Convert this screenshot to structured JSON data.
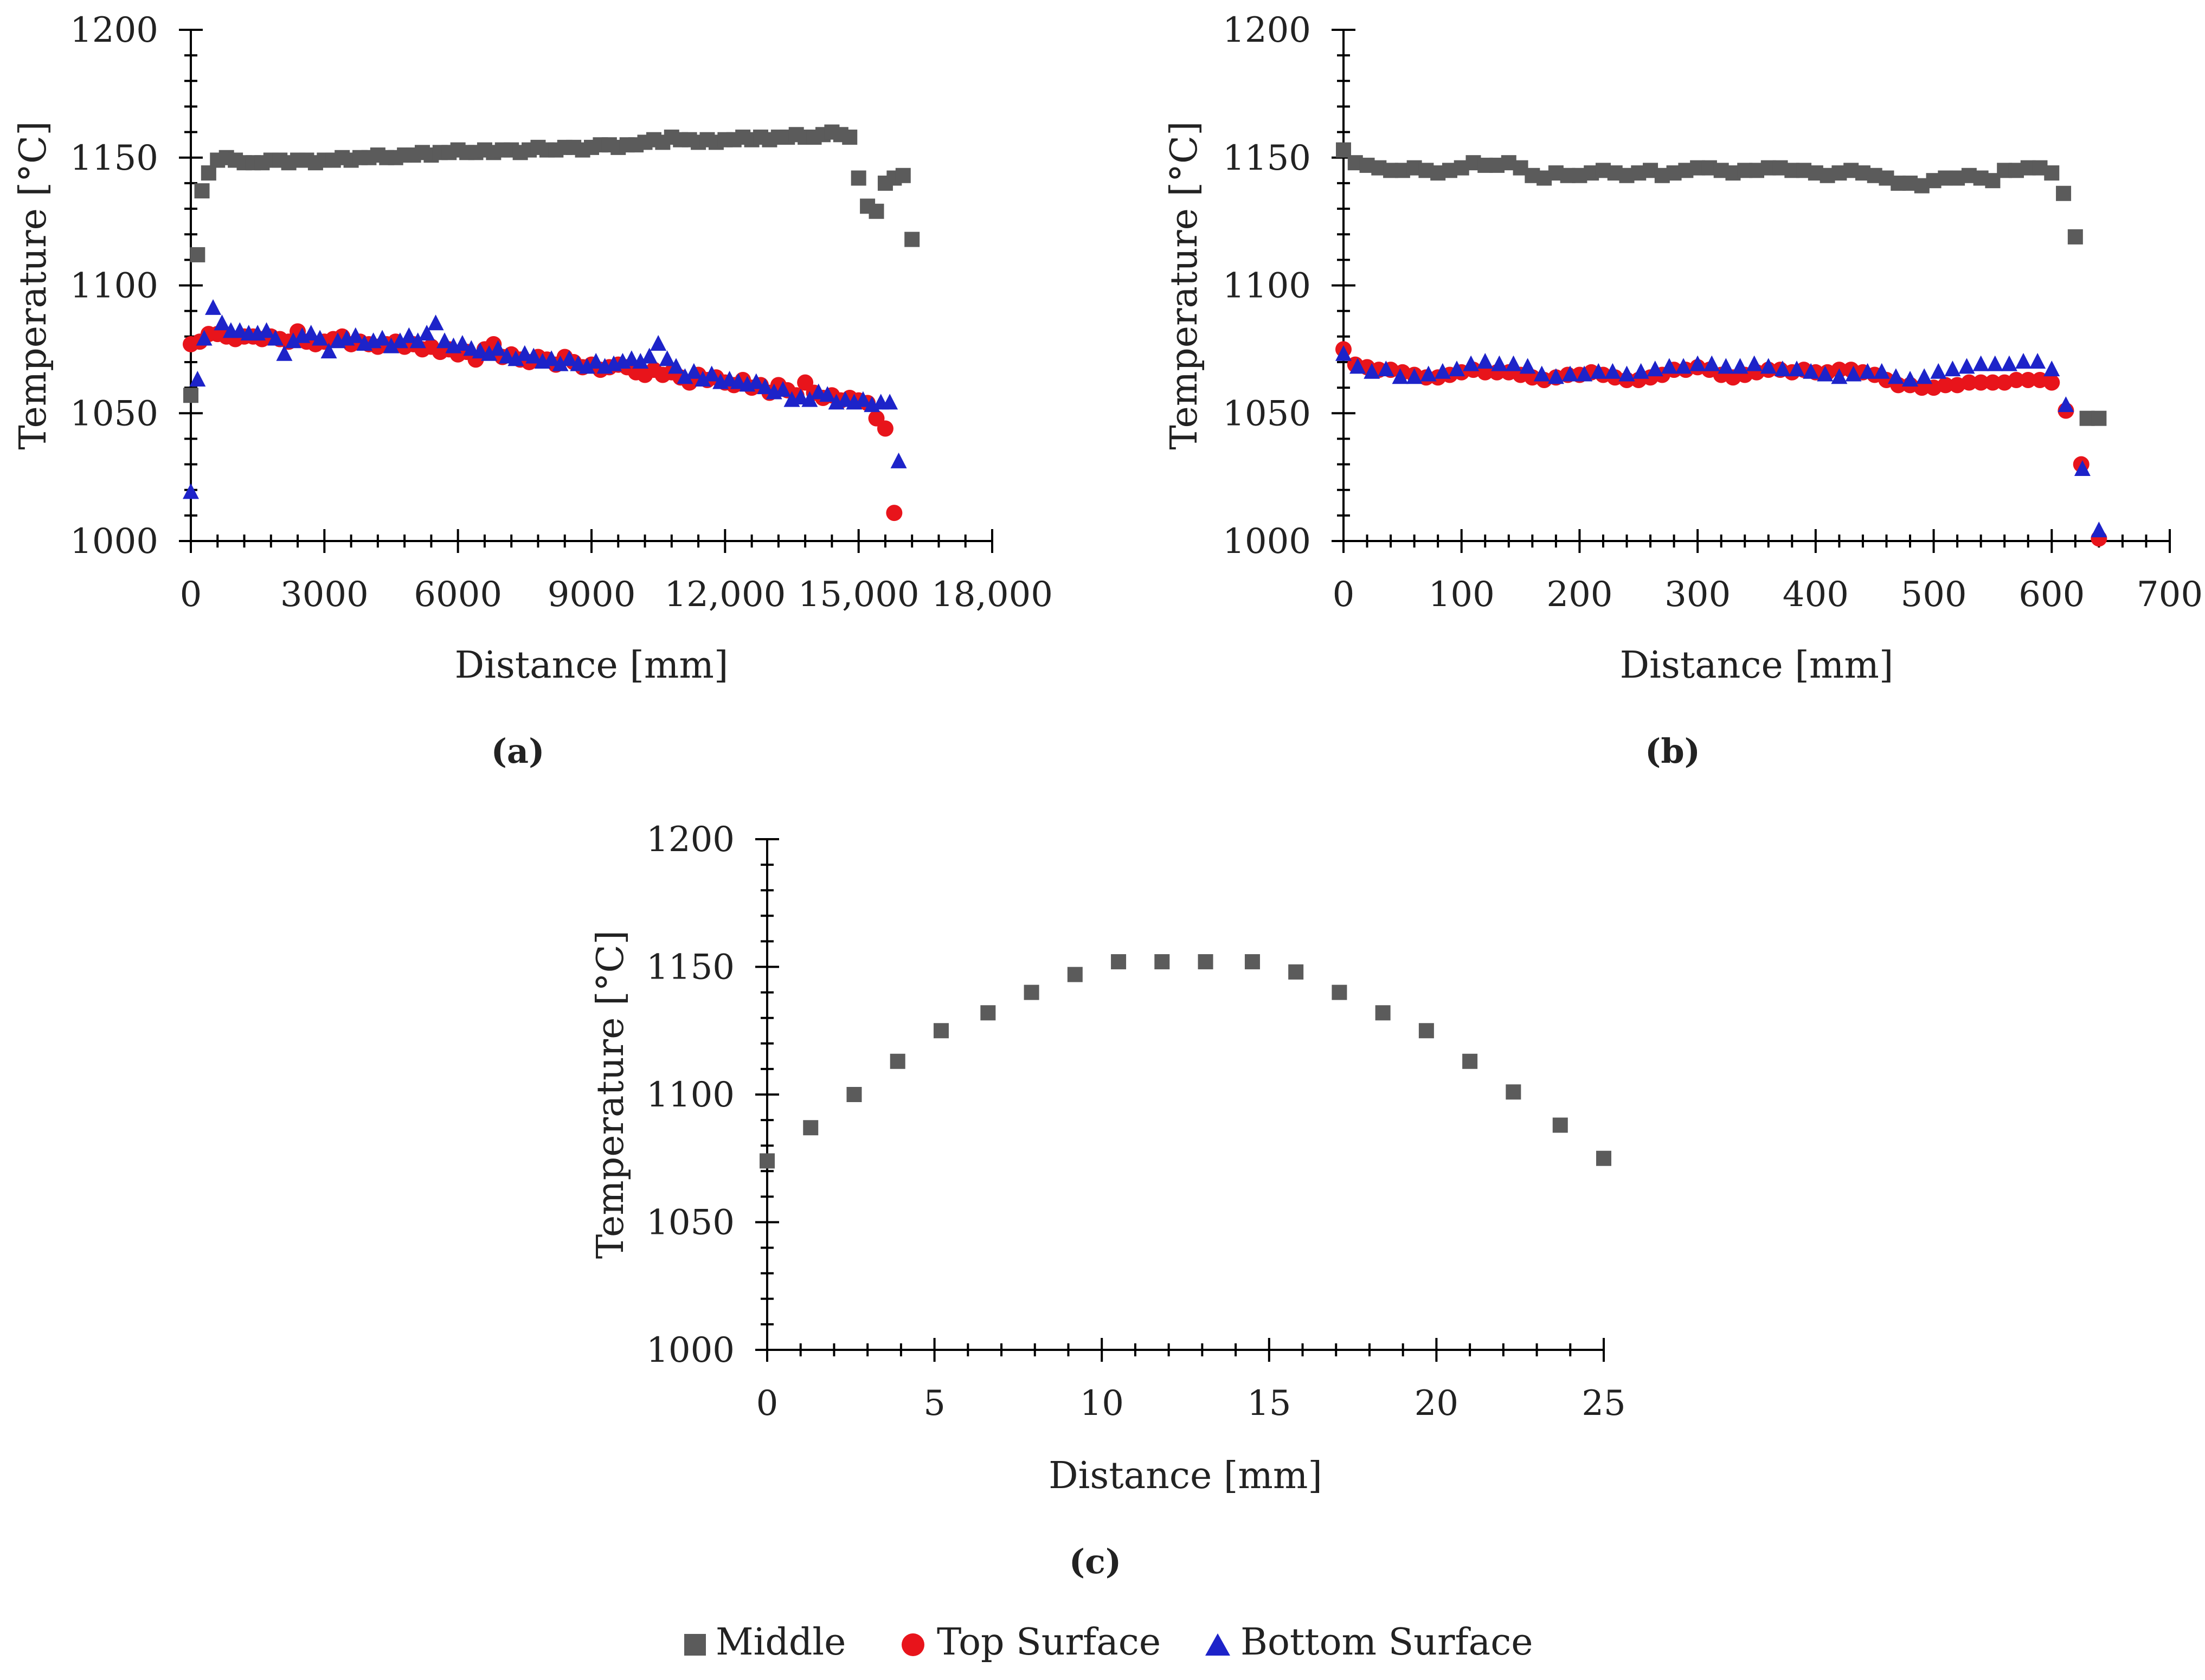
{
  "colors": {
    "middle": "#5b5b5b",
    "top_surface": "#e8141b",
    "bottom_surface": "#1d23c9",
    "axis": "#000000",
    "text": "#222222"
  },
  "legend": {
    "items": [
      {
        "key": "middle",
        "label": "Middle",
        "marker": "square"
      },
      {
        "key": "top",
        "label": "Top Surface",
        "marker": "circle"
      },
      {
        "key": "bottom",
        "label": "Bottom Surface",
        "marker": "triangle"
      }
    ]
  },
  "chart_data": [
    {
      "type": "scatter",
      "panel_label": "(a)",
      "xlabel": "Distance [mm]",
      "ylabel": "Temperature [°C]",
      "xlim": [
        0,
        18000
      ],
      "ylim": [
        1000,
        1200
      ],
      "xticks": [
        0,
        3000,
        6000,
        9000,
        12000,
        15000,
        18000
      ],
      "xtick_labels": [
        "0",
        "3000",
        "6000",
        "9000",
        "12,000",
        "15,000",
        "18,000"
      ],
      "yticks": [
        1000,
        1050,
        1100,
        1150,
        1200
      ],
      "ytick_labels": [
        "1000",
        "1050",
        "1100",
        "1150",
        "1200"
      ],
      "series": [
        {
          "name": "Middle",
          "key": "middle",
          "x": [
            0,
            150,
            250,
            400,
            600,
            800,
            1000,
            1200,
            1400,
            1600,
            1800,
            2000,
            2200,
            2400,
            2600,
            2800,
            3000,
            3200,
            3400,
            3600,
            3800,
            4000,
            4200,
            4400,
            4600,
            4800,
            5000,
            5200,
            5400,
            5600,
            5800,
            6000,
            6200,
            6400,
            6600,
            6800,
            7000,
            7200,
            7400,
            7600,
            7800,
            8000,
            8200,
            8400,
            8600,
            8800,
            9000,
            9200,
            9400,
            9600,
            9800,
            10000,
            10200,
            10400,
            10600,
            10800,
            11000,
            11200,
            11400,
            11600,
            11800,
            12000,
            12200,
            12400,
            12600,
            12800,
            13000,
            13200,
            13400,
            13600,
            13800,
            14000,
            14200,
            14400,
            14600,
            14800,
            15000,
            15200,
            15400,
            15600,
            15800,
            16000,
            16200
          ],
          "y": [
            1057,
            1112,
            1137,
            1144,
            1149,
            1150,
            1149,
            1148,
            1148,
            1148,
            1149,
            1149,
            1148,
            1149,
            1149,
            1148,
            1149,
            1149,
            1150,
            1149,
            1150,
            1150,
            1151,
            1150,
            1150,
            1151,
            1151,
            1152,
            1151,
            1152,
            1152,
            1153,
            1152,
            1152,
            1153,
            1152,
            1153,
            1153,
            1152,
            1153,
            1154,
            1153,
            1153,
            1154,
            1154,
            1153,
            1154,
            1155,
            1155,
            1154,
            1155,
            1155,
            1156,
            1157,
            1156,
            1158,
            1157,
            1157,
            1156,
            1157,
            1156,
            1157,
            1157,
            1158,
            1157,
            1158,
            1157,
            1158,
            1158,
            1159,
            1158,
            1158,
            1159,
            1160,
            1159,
            1158,
            1142,
            1131,
            1129,
            1140,
            1142,
            1143,
            1118
          ]
        },
        {
          "name": "Top Surface",
          "key": "top",
          "x": [
            0,
            200,
            400,
            600,
            800,
            1000,
            1200,
            1400,
            1600,
            1800,
            2000,
            2200,
            2400,
            2600,
            2800,
            3000,
            3200,
            3400,
            3600,
            3800,
            4000,
            4200,
            4400,
            4600,
            4800,
            5000,
            5200,
            5400,
            5600,
            5800,
            6000,
            6200,
            6400,
            6600,
            6800,
            7000,
            7200,
            7400,
            7600,
            7800,
            8000,
            8200,
            8400,
            8600,
            8800,
            9000,
            9200,
            9400,
            9600,
            9800,
            10000,
            10200,
            10400,
            10600,
            10800,
            11000,
            11200,
            11400,
            11600,
            11800,
            12000,
            12200,
            12400,
            12600,
            12800,
            13000,
            13200,
            13400,
            13600,
            13800,
            14000,
            14200,
            14400,
            14600,
            14800,
            15000,
            15200,
            15400,
            15600,
            15800
          ],
          "y": [
            1077,
            1078,
            1081,
            1081,
            1080,
            1079,
            1080,
            1080,
            1079,
            1080,
            1079,
            1078,
            1082,
            1078,
            1077,
            1078,
            1079,
            1080,
            1077,
            1078,
            1077,
            1076,
            1077,
            1078,
            1076,
            1077,
            1075,
            1076,
            1074,
            1075,
            1073,
            1074,
            1071,
            1075,
            1077,
            1072,
            1073,
            1071,
            1070,
            1072,
            1071,
            1069,
            1072,
            1070,
            1068,
            1069,
            1067,
            1068,
            1069,
            1068,
            1066,
            1065,
            1067,
            1065,
            1066,
            1064,
            1062,
            1065,
            1063,
            1064,
            1062,
            1061,
            1063,
            1060,
            1061,
            1058,
            1061,
            1059,
            1057,
            1062,
            1058,
            1056,
            1057,
            1055,
            1056,
            1055,
            1054,
            1048,
            1044,
            1011
          ]
        },
        {
          "name": "Bottom Surface",
          "key": "bottom",
          "x": [
            0,
            150,
            300,
            500,
            700,
            900,
            1100,
            1300,
            1500,
            1700,
            1900,
            2100,
            2300,
            2500,
            2700,
            2900,
            3100,
            3300,
            3500,
            3700,
            3900,
            4100,
            4300,
            4500,
            4700,
            4900,
            5100,
            5300,
            5500,
            5700,
            5900,
            6100,
            6300,
            6500,
            6700,
            6900,
            7100,
            7300,
            7500,
            7700,
            7900,
            8100,
            8300,
            8500,
            8700,
            8900,
            9100,
            9300,
            9500,
            9700,
            9900,
            10100,
            10300,
            10500,
            10700,
            10900,
            11100,
            11300,
            11500,
            11700,
            11900,
            12100,
            12300,
            12500,
            12700,
            12900,
            13100,
            13300,
            13500,
            13700,
            13900,
            14100,
            14300,
            14500,
            14700,
            14900,
            15100,
            15300,
            15500,
            15700,
            15900
          ],
          "y": [
            1019,
            1063,
            1079,
            1091,
            1085,
            1082,
            1082,
            1081,
            1081,
            1082,
            1079,
            1073,
            1078,
            1080,
            1081,
            1079,
            1074,
            1078,
            1079,
            1080,
            1077,
            1078,
            1079,
            1076,
            1078,
            1080,
            1078,
            1081,
            1085,
            1078,
            1076,
            1077,
            1075,
            1074,
            1073,
            1075,
            1072,
            1071,
            1073,
            1072,
            1070,
            1071,
            1069,
            1071,
            1069,
            1068,
            1070,
            1068,
            1069,
            1070,
            1071,
            1070,
            1072,
            1077,
            1071,
            1068,
            1064,
            1066,
            1063,
            1065,
            1062,
            1063,
            1062,
            1061,
            1062,
            1060,
            1058,
            1059,
            1055,
            1056,
            1055,
            1058,
            1057,
            1054,
            1055,
            1054,
            1055,
            1053,
            1054,
            1054,
            1031
          ]
        }
      ]
    },
    {
      "type": "scatter",
      "panel_label": "(b)",
      "xlabel": "Distance [mm]",
      "ylabel": "Temperature [°C]",
      "xlim": [
        0,
        700
      ],
      "ylim": [
        1000,
        1200
      ],
      "xticks": [
        0,
        100,
        200,
        300,
        400,
        500,
        600,
        700
      ],
      "xtick_labels": [
        "0",
        "100",
        "200",
        "300",
        "400",
        "500",
        "600",
        "700"
      ],
      "yticks": [
        1000,
        1050,
        1100,
        1150,
        1200
      ],
      "ytick_labels": [
        "1000",
        "1050",
        "1100",
        "1150",
        "1200"
      ],
      "series": [
        {
          "name": "Middle",
          "key": "middle",
          "x": [
            0,
            10,
            20,
            30,
            40,
            50,
            60,
            70,
            80,
            90,
            100,
            110,
            120,
            130,
            140,
            150,
            160,
            170,
            180,
            190,
            200,
            210,
            220,
            230,
            240,
            250,
            260,
            270,
            280,
            290,
            300,
            310,
            320,
            330,
            340,
            350,
            360,
            370,
            380,
            390,
            400,
            410,
            420,
            430,
            440,
            450,
            460,
            470,
            480,
            490,
            500,
            510,
            520,
            530,
            540,
            550,
            560,
            570,
            580,
            590,
            600,
            610,
            620,
            630,
            640
          ],
          "y": [
            1153,
            1148,
            1147,
            1146,
            1145,
            1145,
            1146,
            1145,
            1144,
            1145,
            1146,
            1148,
            1147,
            1147,
            1148,
            1146,
            1143,
            1142,
            1144,
            1143,
            1143,
            1144,
            1145,
            1144,
            1143,
            1144,
            1145,
            1143,
            1144,
            1145,
            1146,
            1146,
            1145,
            1144,
            1145,
            1145,
            1146,
            1146,
            1145,
            1145,
            1144,
            1143,
            1144,
            1145,
            1144,
            1143,
            1142,
            1140,
            1140,
            1139,
            1141,
            1142,
            1142,
            1143,
            1142,
            1141,
            1145,
            1145,
            1146,
            1146,
            1144,
            1136,
            1119,
            1048,
            1048
          ]
        },
        {
          "name": "Top Surface",
          "key": "top",
          "x": [
            0,
            10,
            20,
            30,
            40,
            50,
            60,
            70,
            80,
            90,
            100,
            110,
            120,
            130,
            140,
            150,
            160,
            170,
            180,
            190,
            200,
            210,
            220,
            230,
            240,
            250,
            260,
            270,
            280,
            290,
            300,
            310,
            320,
            330,
            340,
            350,
            360,
            370,
            380,
            390,
            400,
            410,
            420,
            430,
            440,
            450,
            460,
            470,
            480,
            490,
            500,
            510,
            520,
            530,
            540,
            550,
            560,
            570,
            580,
            590,
            600,
            612,
            625,
            640
          ],
          "y": [
            1075,
            1069,
            1068,
            1067,
            1067,
            1066,
            1065,
            1064,
            1064,
            1065,
            1066,
            1067,
            1066,
            1066,
            1066,
            1065,
            1064,
            1063,
            1064,
            1065,
            1065,
            1066,
            1065,
            1064,
            1063,
            1063,
            1064,
            1065,
            1067,
            1067,
            1068,
            1067,
            1065,
            1064,
            1065,
            1066,
            1067,
            1067,
            1066,
            1067,
            1066,
            1066,
            1067,
            1067,
            1066,
            1065,
            1063,
            1061,
            1061,
            1060,
            1060,
            1061,
            1061,
            1062,
            1062,
            1062,
            1062,
            1063,
            1063,
            1063,
            1062,
            1051,
            1030,
            1001
          ]
        },
        {
          "name": "Bottom Surface",
          "key": "bottom",
          "x": [
            0,
            12,
            24,
            36,
            48,
            60,
            72,
            84,
            96,
            108,
            120,
            132,
            144,
            156,
            168,
            180,
            192,
            204,
            216,
            228,
            240,
            252,
            264,
            276,
            288,
            300,
            312,
            324,
            336,
            348,
            360,
            372,
            384,
            396,
            408,
            420,
            432,
            444,
            456,
            468,
            480,
            492,
            504,
            516,
            528,
            540,
            552,
            564,
            576,
            588,
            600,
            612,
            626,
            640
          ],
          "y": [
            1073,
            1068,
            1066,
            1067,
            1064,
            1064,
            1065,
            1066,
            1067,
            1069,
            1070,
            1069,
            1069,
            1068,
            1065,
            1064,
            1065,
            1065,
            1066,
            1066,
            1065,
            1066,
            1067,
            1068,
            1068,
            1069,
            1069,
            1068,
            1068,
            1069,
            1068,
            1067,
            1067,
            1066,
            1065,
            1064,
            1065,
            1066,
            1066,
            1064,
            1063,
            1064,
            1066,
            1067,
            1068,
            1069,
            1069,
            1069,
            1070,
            1070,
            1067,
            1053,
            1028,
            1004
          ]
        }
      ]
    },
    {
      "type": "scatter",
      "panel_label": "(c)",
      "xlabel": "Distance [mm]",
      "ylabel": "Temperature [°C]",
      "xlim": [
        0,
        25
      ],
      "ylim": [
        1000,
        1200
      ],
      "xticks": [
        0,
        5,
        10,
        15,
        20,
        25
      ],
      "xtick_labels": [
        "0",
        "5",
        "10",
        "15",
        "20",
        "25"
      ],
      "yticks": [
        1000,
        1050,
        1100,
        1150,
        1200
      ],
      "ytick_labels": [
        "1000",
        "1050",
        "1100",
        "1150",
        "1200"
      ],
      "series": [
        {
          "name": "Middle",
          "key": "middle",
          "x": [
            0,
            1.3,
            2.6,
            3.9,
            5.2,
            6.6,
            7.9,
            9.2,
            10.5,
            11.8,
            13.1,
            14.5,
            15.8,
            17.1,
            18.4,
            19.7,
            21.0,
            22.3,
            23.7,
            25.0
          ],
          "y": [
            1074,
            1087,
            1100,
            1113,
            1125,
            1132,
            1140,
            1147,
            1152,
            1152,
            1152,
            1152,
            1148,
            1140,
            1132,
            1125,
            1113,
            1101,
            1088,
            1075
          ]
        }
      ]
    }
  ]
}
